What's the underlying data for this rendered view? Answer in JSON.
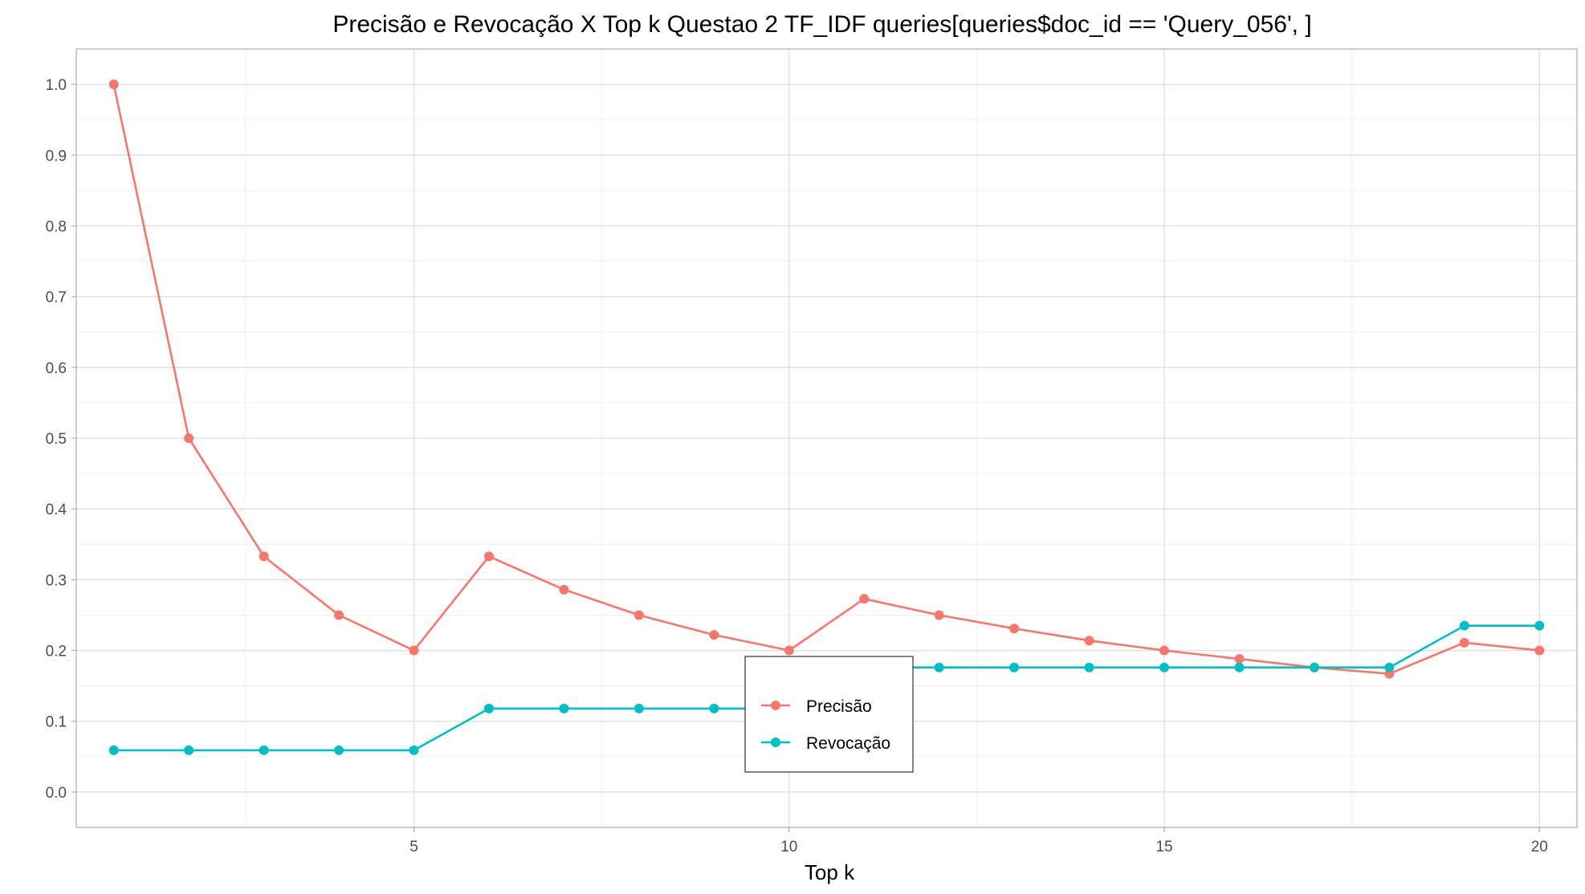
{
  "chart_data": {
    "type": "line",
    "title": "Precisão e Revocação X Top k Questao 2 TF_IDF queries[queries$doc_id == 'Query_056', ]",
    "xlabel": "Top k",
    "ylabel": "",
    "xlim": [
      0.5,
      20.5
    ],
    "ylim": [
      -0.05,
      1.05
    ],
    "x_ticks": [
      5,
      10,
      15,
      20
    ],
    "y_ticks": [
      0.0,
      0.1,
      0.2,
      0.3,
      0.4,
      0.5,
      0.6,
      0.7,
      0.8,
      0.9,
      1.0
    ],
    "x_tick_labels": [
      "5",
      "10",
      "15",
      "20"
    ],
    "y_tick_labels": [
      "0.0",
      "0.1",
      "0.2",
      "0.3",
      "0.4",
      "0.5",
      "0.6",
      "0.7",
      "0.8",
      "0.9",
      "1.0"
    ],
    "grid": true,
    "legend_position": "bottom-center inside",
    "x": [
      1,
      2,
      3,
      4,
      5,
      6,
      7,
      8,
      9,
      10,
      11,
      12,
      13,
      14,
      15,
      16,
      17,
      18,
      19,
      20
    ],
    "series": [
      {
        "name": "Precisão",
        "color": "#F8766D",
        "values": [
          1.0,
          0.5,
          0.333,
          0.25,
          0.2,
          0.333,
          0.286,
          0.25,
          0.222,
          0.2,
          0.273,
          0.25,
          0.231,
          0.214,
          0.2,
          0.188,
          0.176,
          0.167,
          0.211,
          0.2
        ]
      },
      {
        "name": "Revocação",
        "color": "#00BFC4",
        "values": [
          0.059,
          0.059,
          0.059,
          0.059,
          0.059,
          0.118,
          0.118,
          0.118,
          0.118,
          0.118,
          0.176,
          0.176,
          0.176,
          0.176,
          0.176,
          0.176,
          0.176,
          0.176,
          0.235,
          0.235
        ]
      }
    ]
  }
}
